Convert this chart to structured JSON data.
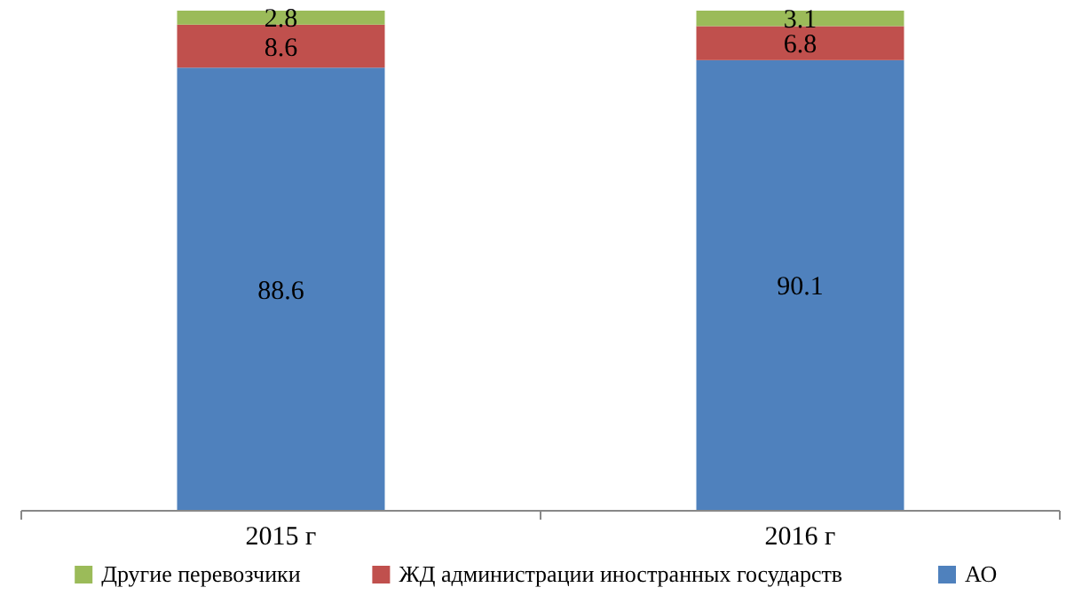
{
  "chart_data": {
    "type": "bar",
    "stacked": true,
    "categories": [
      "2015 г",
      "2016 г"
    ],
    "series": [
      {
        "name": "АО",
        "color": "#4f81bd",
        "values": [
          88.6,
          90.1
        ]
      },
      {
        "name": "ЖД администрации иностранных государств",
        "color": "#c0504d",
        "values": [
          8.6,
          6.8
        ]
      },
      {
        "name": "Другие перевозчики",
        "color": "#9bbb59",
        "values": [
          2.8,
          3.1
        ]
      }
    ],
    "ylim": [
      0,
      100
    ],
    "data_labels": true,
    "legend": "bottom",
    "tick_labels": "x"
  }
}
